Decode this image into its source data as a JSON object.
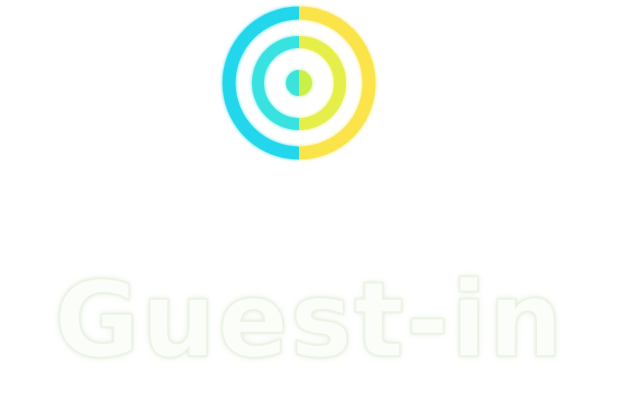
{
  "brand": {
    "name": "Guest-in",
    "colors": {
      "cyan": "#1ed8ea",
      "aqua": "#4fe6d8",
      "yellow": "#fbe84a",
      "lime": "#b8ef3a",
      "wordmark": "#fbfdf8"
    }
  },
  "logo": {
    "icon": "target-pin-icon",
    "line_rows_per_side": 3
  }
}
